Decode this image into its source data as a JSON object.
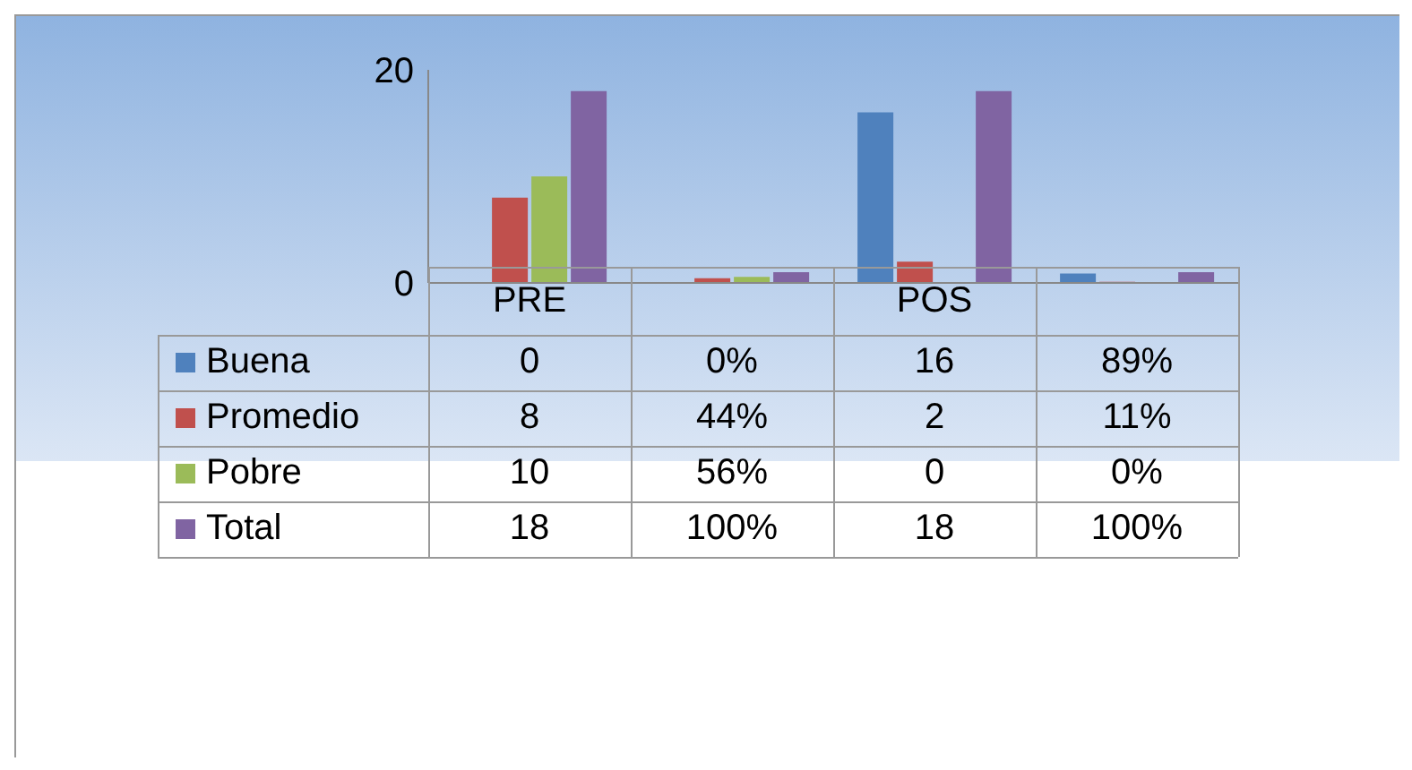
{
  "chart_data": {
    "type": "bar",
    "categories": [
      "PRE",
      null,
      "POS",
      null
    ],
    "series": [
      {
        "name": "Buena",
        "color": "#4f81bd",
        "values": [
          0,
          0,
          16,
          0.89
        ],
        "value_labels": [
          "0",
          "0%",
          "16",
          "89%"
        ]
      },
      {
        "name": "Promedio",
        "color": "#c0504d",
        "values": [
          8,
          0.44,
          2,
          0.11
        ],
        "value_labels": [
          "8",
          "44%",
          "2",
          "11%"
        ]
      },
      {
        "name": "Pobre",
        "color": "#9bbb59",
        "values": [
          10,
          0.56,
          0,
          0
        ],
        "value_labels": [
          "10",
          "56%",
          "0",
          "0%"
        ]
      },
      {
        "name": "Total",
        "color": "#8064a2",
        "values": [
          18,
          1,
          18,
          1
        ],
        "value_labels": [
          "18",
          "100%",
          "18",
          "100%"
        ]
      }
    ],
    "ylim": [
      0,
      20
    ],
    "yticks": [
      0,
      20
    ],
    "legend": "left"
  }
}
